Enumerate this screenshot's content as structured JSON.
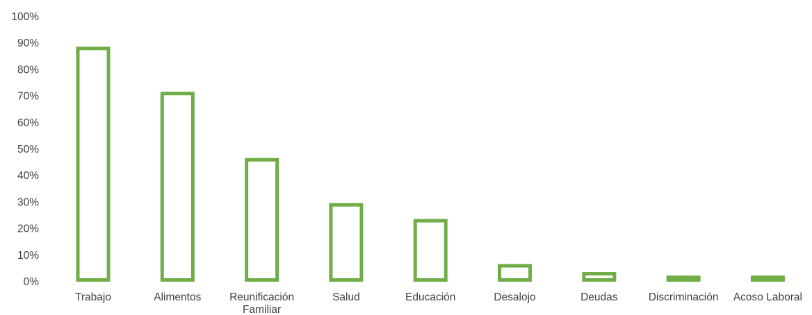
{
  "chart_data": {
    "type": "bar",
    "categories": [
      [
        "Trabajo"
      ],
      [
        "Alimentos"
      ],
      [
        "Reunificación",
        "Familiar"
      ],
      [
        "Salud"
      ],
      [
        "Educación"
      ],
      [
        "Desalojo"
      ],
      [
        "Deudas"
      ],
      [
        "Discriminación"
      ],
      [
        "Acoso Laboral"
      ]
    ],
    "values": [
      0.88,
      0.71,
      0.46,
      0.29,
      0.23,
      0.06,
      0.03,
      0.01,
      0.01
    ],
    "ylim": [
      0,
      1
    ],
    "yticks": [
      "0%",
      "10%",
      "20%",
      "30%",
      "40%",
      "50%",
      "60%",
      "70%",
      "80%",
      "90%",
      "100%"
    ],
    "grid": false,
    "legend": "none",
    "title": "",
    "xlabel": "",
    "ylabel": "",
    "colors": {
      "bar_stroke": "#70AD47",
      "text": "#404040"
    }
  }
}
